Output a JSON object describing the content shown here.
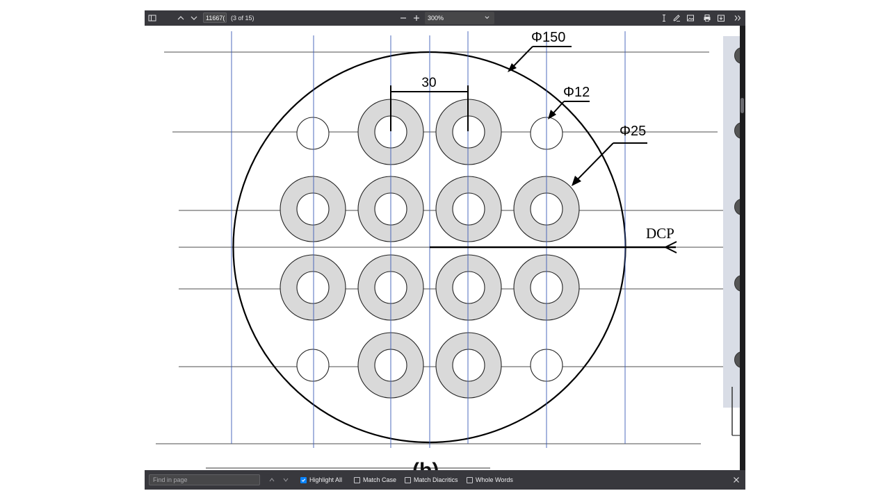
{
  "toolbar": {
    "page_value": "11667(",
    "page_count": "(3 of 15)",
    "zoom_value": "300%"
  },
  "drawing": {
    "diameter_outer": "Φ150",
    "diameter_small": "Φ12",
    "diameter_ring": "Φ25",
    "spacing": "30",
    "arrow_label": "DCP",
    "caption": "(b)"
  },
  "findbar": {
    "placeholder": "Find in page",
    "highlight_all": "Highlight All",
    "match_case": "Match Case",
    "match_diacritics": "Match Diacritics",
    "whole_words": "Whole Words"
  },
  "colors": {
    "toolbar_bg": "#38383d",
    "ring_fill": "#d9d9d9",
    "grid_blue": "#3b5bb5",
    "checkbox_accent": "#0a84ff"
  }
}
